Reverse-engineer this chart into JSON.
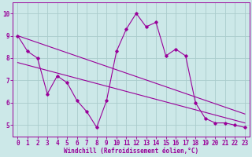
{
  "x": [
    0,
    1,
    2,
    3,
    4,
    5,
    6,
    7,
    8,
    9,
    10,
    11,
    12,
    13,
    14,
    15,
    16,
    17,
    18,
    19,
    20,
    21,
    22,
    23
  ],
  "y_data": [
    9.0,
    8.3,
    8.0,
    6.4,
    7.2,
    6.9,
    6.1,
    5.6,
    4.9,
    6.1,
    8.3,
    9.3,
    10.0,
    9.4,
    9.6,
    8.1,
    8.4,
    8.1,
    6.0,
    5.3,
    5.1,
    5.1,
    5.0,
    4.9
  ],
  "trend1_x": [
    0,
    23
  ],
  "trend1_y": [
    9.0,
    5.5
  ],
  "trend2_x": [
    0,
    23
  ],
  "trend2_y": [
    7.8,
    5.1
  ],
  "line_color": "#990099",
  "bg_color": "#cce8e8",
  "grid_color": "#aacccc",
  "xlabel": "Windchill (Refroidissement éolien,°C)",
  "xlim": [
    -0.5,
    23.5
  ],
  "ylim": [
    4.5,
    10.5
  ],
  "yticks": [
    5,
    6,
    7,
    8,
    9,
    10
  ],
  "xticks": [
    0,
    1,
    2,
    3,
    4,
    5,
    6,
    7,
    8,
    9,
    10,
    11,
    12,
    13,
    14,
    15,
    16,
    17,
    18,
    19,
    20,
    21,
    22,
    23
  ],
  "tick_labelsize": 5.5,
  "xlabel_fontsize": 5.5
}
